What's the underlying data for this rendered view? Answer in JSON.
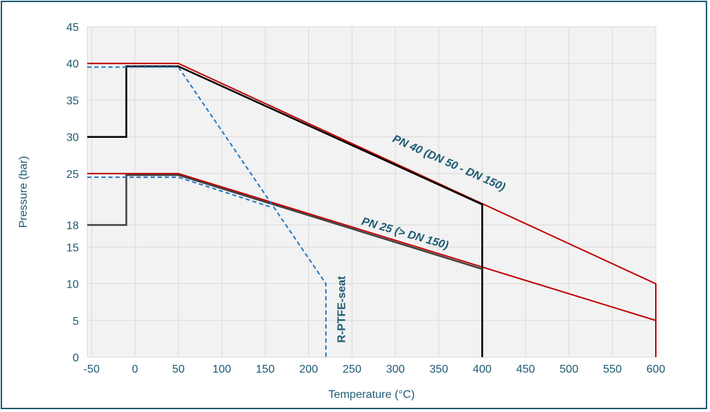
{
  "chart_data": {
    "type": "line",
    "xlabel": "Temperature (°C)",
    "ylabel": "Pressure (bar)",
    "xlim": [
      -55,
      600
    ],
    "ylim": [
      0,
      45
    ],
    "x_ticks": [
      -50,
      0,
      50,
      100,
      150,
      200,
      250,
      300,
      350,
      400,
      450,
      500,
      550,
      600
    ],
    "y_ticks": [
      0,
      5,
      10,
      15,
      18,
      25,
      30,
      35,
      40,
      45
    ],
    "grid": true,
    "colors": {
      "plot_bg": "#f2f2f2",
      "grid": "#d9d9d9",
      "text": "#1b5a73",
      "rating": "#c00000",
      "body": "#000000",
      "body25": "#404040",
      "seat": "#1f77c8"
    },
    "series": [
      {
        "key": "pn40_rating",
        "color": "#c00000",
        "width": 2,
        "dash": "",
        "x": [
          -55,
          50,
          600,
          600
        ],
        "y": [
          40,
          40,
          10,
          0
        ]
      },
      {
        "key": "pn25_rating",
        "color": "#c00000",
        "width": 2,
        "dash": "",
        "x": [
          -55,
          50,
          600,
          600
        ],
        "y": [
          25,
          25,
          5,
          0
        ]
      },
      {
        "key": "pn40_body",
        "color": "#000000",
        "width": 2.5,
        "dash": "",
        "x": [
          -55,
          -10,
          -10,
          50,
          400,
          400
        ],
        "y": [
          30,
          30,
          39.6,
          39.6,
          20.8,
          0
        ]
      },
      {
        "key": "pn25_body",
        "color": "#404040",
        "width": 2.5,
        "dash": "",
        "x": [
          -55,
          -10,
          -10,
          50,
          400
        ],
        "y": [
          18,
          18,
          24.8,
          24.8,
          12
        ]
      },
      {
        "key": "seat_pn40",
        "color": "#1f77c8",
        "width": 2,
        "dash": "6,4",
        "x": [
          -55,
          50,
          220,
          220
        ],
        "y": [
          39.5,
          39.5,
          10,
          0
        ]
      },
      {
        "key": "seat_pn25",
        "color": "#1f77c8",
        "width": 2,
        "dash": "6,4",
        "x": [
          -55,
          50,
          155
        ],
        "y": [
          24.5,
          24.5,
          20.5
        ]
      }
    ],
    "annotations": [
      {
        "text": "PN 40 (DN 50 - DN 150)",
        "x": 360,
        "y": 26,
        "angle": 24,
        "style": "italic"
      },
      {
        "text": "PN 25 (> DN 150)",
        "x": 310,
        "y": 16.4,
        "angle": 16,
        "style": "italic"
      },
      {
        "text": "R-PTFE-seat",
        "x": 242,
        "y": 6.5,
        "angle": -90,
        "style": "vertical"
      }
    ]
  }
}
